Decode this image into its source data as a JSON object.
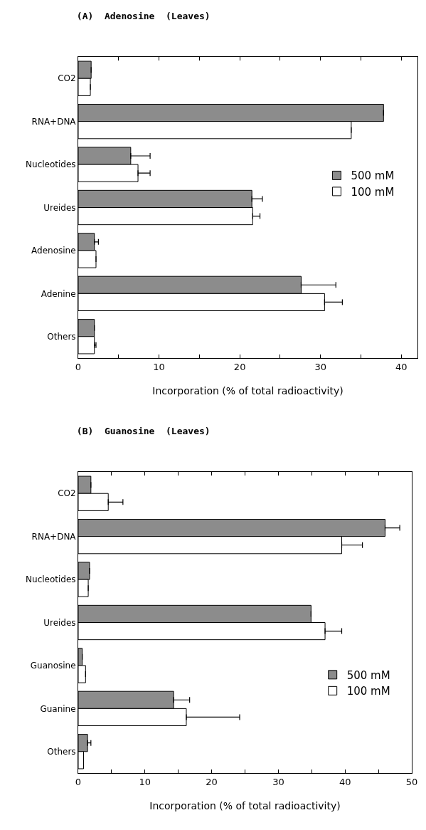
{
  "chart_data": [
    {
      "type": "bar",
      "orientation": "horizontal",
      "title": "(A)  Adenosine  (Leaves)",
      "xlabel": "Incorporation (% of total radioactivity)",
      "categories": [
        "CO2",
        "RNA+DNA",
        "Nucleotides",
        "Ureides",
        "Adenosine",
        "Adenine",
        "Others"
      ],
      "series": [
        {
          "name": "500 mM",
          "color": "#8c8c8c",
          "values": [
            1.6,
            37.8,
            6.5,
            21.5,
            2.0,
            27.6,
            2.0
          ],
          "errors": [
            null,
            null,
            [
              6.5,
              8.9
            ],
            [
              21.5,
              22.8
            ],
            [
              2.0,
              2.5
            ],
            [
              27.6,
              31.9
            ],
            null
          ]
        },
        {
          "name": "100 mM",
          "color": "#ffffff",
          "values": [
            1.5,
            33.8,
            7.4,
            21.6,
            2.2,
            30.5,
            2.0
          ],
          "errors": [
            null,
            null,
            [
              7.4,
              8.9
            ],
            [
              21.6,
              22.5
            ],
            null,
            [
              30.5,
              32.7
            ],
            [
              2.0,
              2.2
            ]
          ]
        }
      ],
      "xlim": [
        0,
        42
      ],
      "xticks": [
        0,
        {
          "value": 5,
          "label": null
        },
        10,
        {
          "value": 15,
          "label": null
        },
        20,
        {
          "value": 25,
          "label": null
        },
        30,
        {
          "value": 35,
          "label": null
        },
        40
      ],
      "grid": false,
      "legend": "right"
    },
    {
      "type": "bar",
      "orientation": "horizontal",
      "title": "(B)  Guanosine  (Leaves)",
      "xlabel": "Incorporation (% of total radioactivity)",
      "categories": [
        "CO2",
        "RNA+DNA",
        "Nucleotides",
        "Ureides",
        "Guanosine",
        "Guanine",
        "Others"
      ],
      "series": [
        {
          "name": "500 mM",
          "color": "#8c8c8c",
          "values": [
            1.9,
            46.0,
            1.7,
            34.9,
            0.6,
            14.3,
            1.4
          ],
          "errors": [
            null,
            [
              46.0,
              48.2
            ],
            null,
            null,
            null,
            [
              14.3,
              16.7
            ],
            [
              1.4,
              1.9
            ]
          ]
        },
        {
          "name": "100 mM",
          "color": "#ffffff",
          "values": [
            4.5,
            39.5,
            1.5,
            37.0,
            1.1,
            16.2,
            0.8
          ],
          "errors": [
            [
              4.5,
              6.7
            ],
            [
              39.5,
              42.6
            ],
            null,
            [
              37.0,
              39.5
            ],
            null,
            [
              16.2,
              24.2
            ],
            null
          ]
        }
      ],
      "xlim": [
        0,
        50
      ],
      "xticks": [
        0,
        {
          "value": 5,
          "label": null
        },
        10,
        {
          "value": 15,
          "label": null
        },
        20,
        {
          "value": 25,
          "label": null
        },
        30,
        {
          "value": 35,
          "label": null
        },
        40,
        {
          "value": 45,
          "label": null
        },
        50
      ],
      "grid": false,
      "legend": "bottom right"
    }
  ]
}
